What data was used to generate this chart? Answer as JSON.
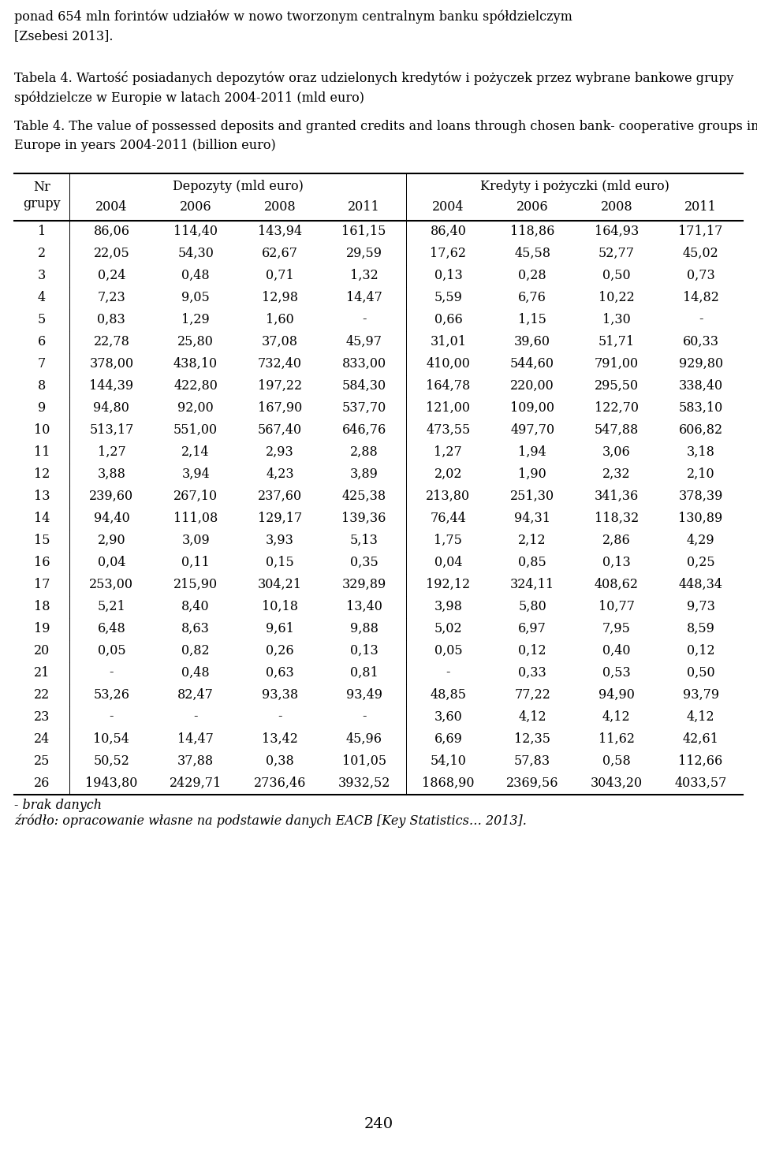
{
  "header_text_top": "ponad 654 mln forintów udziałów w nowo tworzonym centralnym banku spółdzielczym\n[Zsebesi 2013].",
  "tabela_title_pl": "Tabela 4. Wartość posiadanych depozytów oraz udzielonych kredytów i pożyczek przez wybrane bankowe grupy\nspółdzielcze w Europie w latach 2004-2011 (mld euro)",
  "tabela_title_en": "Table 4. The value of possessed deposits and granted credits and loans through chosen bank- cooperative groups in\nEurope in years 2004-2011 (billion euro)",
  "col_header_left": "Nr\ngrupy",
  "col_header_dep": "Depozyty (mld euro)",
  "col_header_kred": "Kredyty i pożyczki (mld euro)",
  "years": [
    "2004",
    "2006",
    "2008",
    "2011"
  ],
  "rows": [
    {
      "nr": "1",
      "dep": [
        "86,06",
        "114,40",
        "143,94",
        "161,15"
      ],
      "kred": [
        "86,40",
        "118,86",
        "164,93",
        "171,17"
      ]
    },
    {
      "nr": "2",
      "dep": [
        "22,05",
        "54,30",
        "62,67",
        "29,59"
      ],
      "kred": [
        "17,62",
        "45,58",
        "52,77",
        "45,02"
      ]
    },
    {
      "nr": "3",
      "dep": [
        "0,24",
        "0,48",
        "0,71",
        "1,32"
      ],
      "kred": [
        "0,13",
        "0,28",
        "0,50",
        "0,73"
      ]
    },
    {
      "nr": "4",
      "dep": [
        "7,23",
        "9,05",
        "12,98",
        "14,47"
      ],
      "kred": [
        "5,59",
        "6,76",
        "10,22",
        "14,82"
      ]
    },
    {
      "nr": "5",
      "dep": [
        "0,83",
        "1,29",
        "1,60",
        "-"
      ],
      "kred": [
        "0,66",
        "1,15",
        "1,30",
        "-"
      ]
    },
    {
      "nr": "6",
      "dep": [
        "22,78",
        "25,80",
        "37,08",
        "45,97"
      ],
      "kred": [
        "31,01",
        "39,60",
        "51,71",
        "60,33"
      ]
    },
    {
      "nr": "7",
      "dep": [
        "378,00",
        "438,10",
        "732,40",
        "833,00"
      ],
      "kred": [
        "410,00",
        "544,60",
        "791,00",
        "929,80"
      ]
    },
    {
      "nr": "8",
      "dep": [
        "144,39",
        "422,80",
        "197,22",
        "584,30"
      ],
      "kred": [
        "164,78",
        "220,00",
        "295,50",
        "338,40"
      ]
    },
    {
      "nr": "9",
      "dep": [
        "94,80",
        "92,00",
        "167,90",
        "537,70"
      ],
      "kred": [
        "121,00",
        "109,00",
        "122,70",
        "583,10"
      ]
    },
    {
      "nr": "10",
      "dep": [
        "513,17",
        "551,00",
        "567,40",
        "646,76"
      ],
      "kred": [
        "473,55",
        "497,70",
        "547,88",
        "606,82"
      ]
    },
    {
      "nr": "11",
      "dep": [
        "1,27",
        "2,14",
        "2,93",
        "2,88"
      ],
      "kred": [
        "1,27",
        "1,94",
        "3,06",
        "3,18"
      ]
    },
    {
      "nr": "12",
      "dep": [
        "3,88",
        "3,94",
        "4,23",
        "3,89"
      ],
      "kred": [
        "2,02",
        "1,90",
        "2,32",
        "2,10"
      ]
    },
    {
      "nr": "13",
      "dep": [
        "239,60",
        "267,10",
        "237,60",
        "425,38"
      ],
      "kred": [
        "213,80",
        "251,30",
        "341,36",
        "378,39"
      ]
    },
    {
      "nr": "14",
      "dep": [
        "94,40",
        "111,08",
        "129,17",
        "139,36"
      ],
      "kred": [
        "76,44",
        "94,31",
        "118,32",
        "130,89"
      ]
    },
    {
      "nr": "15",
      "dep": [
        "2,90",
        "3,09",
        "3,93",
        "5,13"
      ],
      "kred": [
        "1,75",
        "2,12",
        "2,86",
        "4,29"
      ]
    },
    {
      "nr": "16",
      "dep": [
        "0,04",
        "0,11",
        "0,15",
        "0,35"
      ],
      "kred": [
        "0,04",
        "0,85",
        "0,13",
        "0,25"
      ]
    },
    {
      "nr": "17",
      "dep": [
        "253,00",
        "215,90",
        "304,21",
        "329,89"
      ],
      "kred": [
        "192,12",
        "324,11",
        "408,62",
        "448,34"
      ]
    },
    {
      "nr": "18",
      "dep": [
        "5,21",
        "8,40",
        "10,18",
        "13,40"
      ],
      "kred": [
        "3,98",
        "5,80",
        "10,77",
        "9,73"
      ]
    },
    {
      "nr": "19",
      "dep": [
        "6,48",
        "8,63",
        "9,61",
        "9,88"
      ],
      "kred": [
        "5,02",
        "6,97",
        "7,95",
        "8,59"
      ]
    },
    {
      "nr": "20",
      "dep": [
        "0,05",
        "0,82",
        "0,26",
        "0,13"
      ],
      "kred": [
        "0,05",
        "0,12",
        "0,40",
        "0,12"
      ]
    },
    {
      "nr": "21",
      "dep": [
        "-",
        "0,48",
        "0,63",
        "0,81"
      ],
      "kred": [
        "-",
        "0,33",
        "0,53",
        "0,50"
      ]
    },
    {
      "nr": "22",
      "dep": [
        "53,26",
        "82,47",
        "93,38",
        "93,49"
      ],
      "kred": [
        "48,85",
        "77,22",
        "94,90",
        "93,79"
      ]
    },
    {
      "nr": "23",
      "dep": [
        "-",
        "-",
        "-",
        "-"
      ],
      "kred": [
        "3,60",
        "4,12",
        "4,12",
        "4,12"
      ]
    },
    {
      "nr": "24",
      "dep": [
        "10,54",
        "14,47",
        "13,42",
        "45,96"
      ],
      "kred": [
        "6,69",
        "12,35",
        "11,62",
        "42,61"
      ]
    },
    {
      "nr": "25",
      "dep": [
        "50,52",
        "37,88",
        "0,38",
        "101,05"
      ],
      "kred": [
        "54,10",
        "57,83",
        "0,58",
        "112,66"
      ]
    },
    {
      "nr": "26",
      "dep": [
        "1943,80",
        "2429,71",
        "2736,46",
        "3932,52"
      ],
      "kred": [
        "1868,90",
        "2369,56",
        "3043,20",
        "4033,57"
      ]
    }
  ],
  "footnote": "- brak danych",
  "source": "źródło: opracowanie własne na podstawie danych EACB [Key Statistics… 2013].",
  "page_number": "240",
  "bg_color": "#ffffff",
  "text_color": "#000000"
}
